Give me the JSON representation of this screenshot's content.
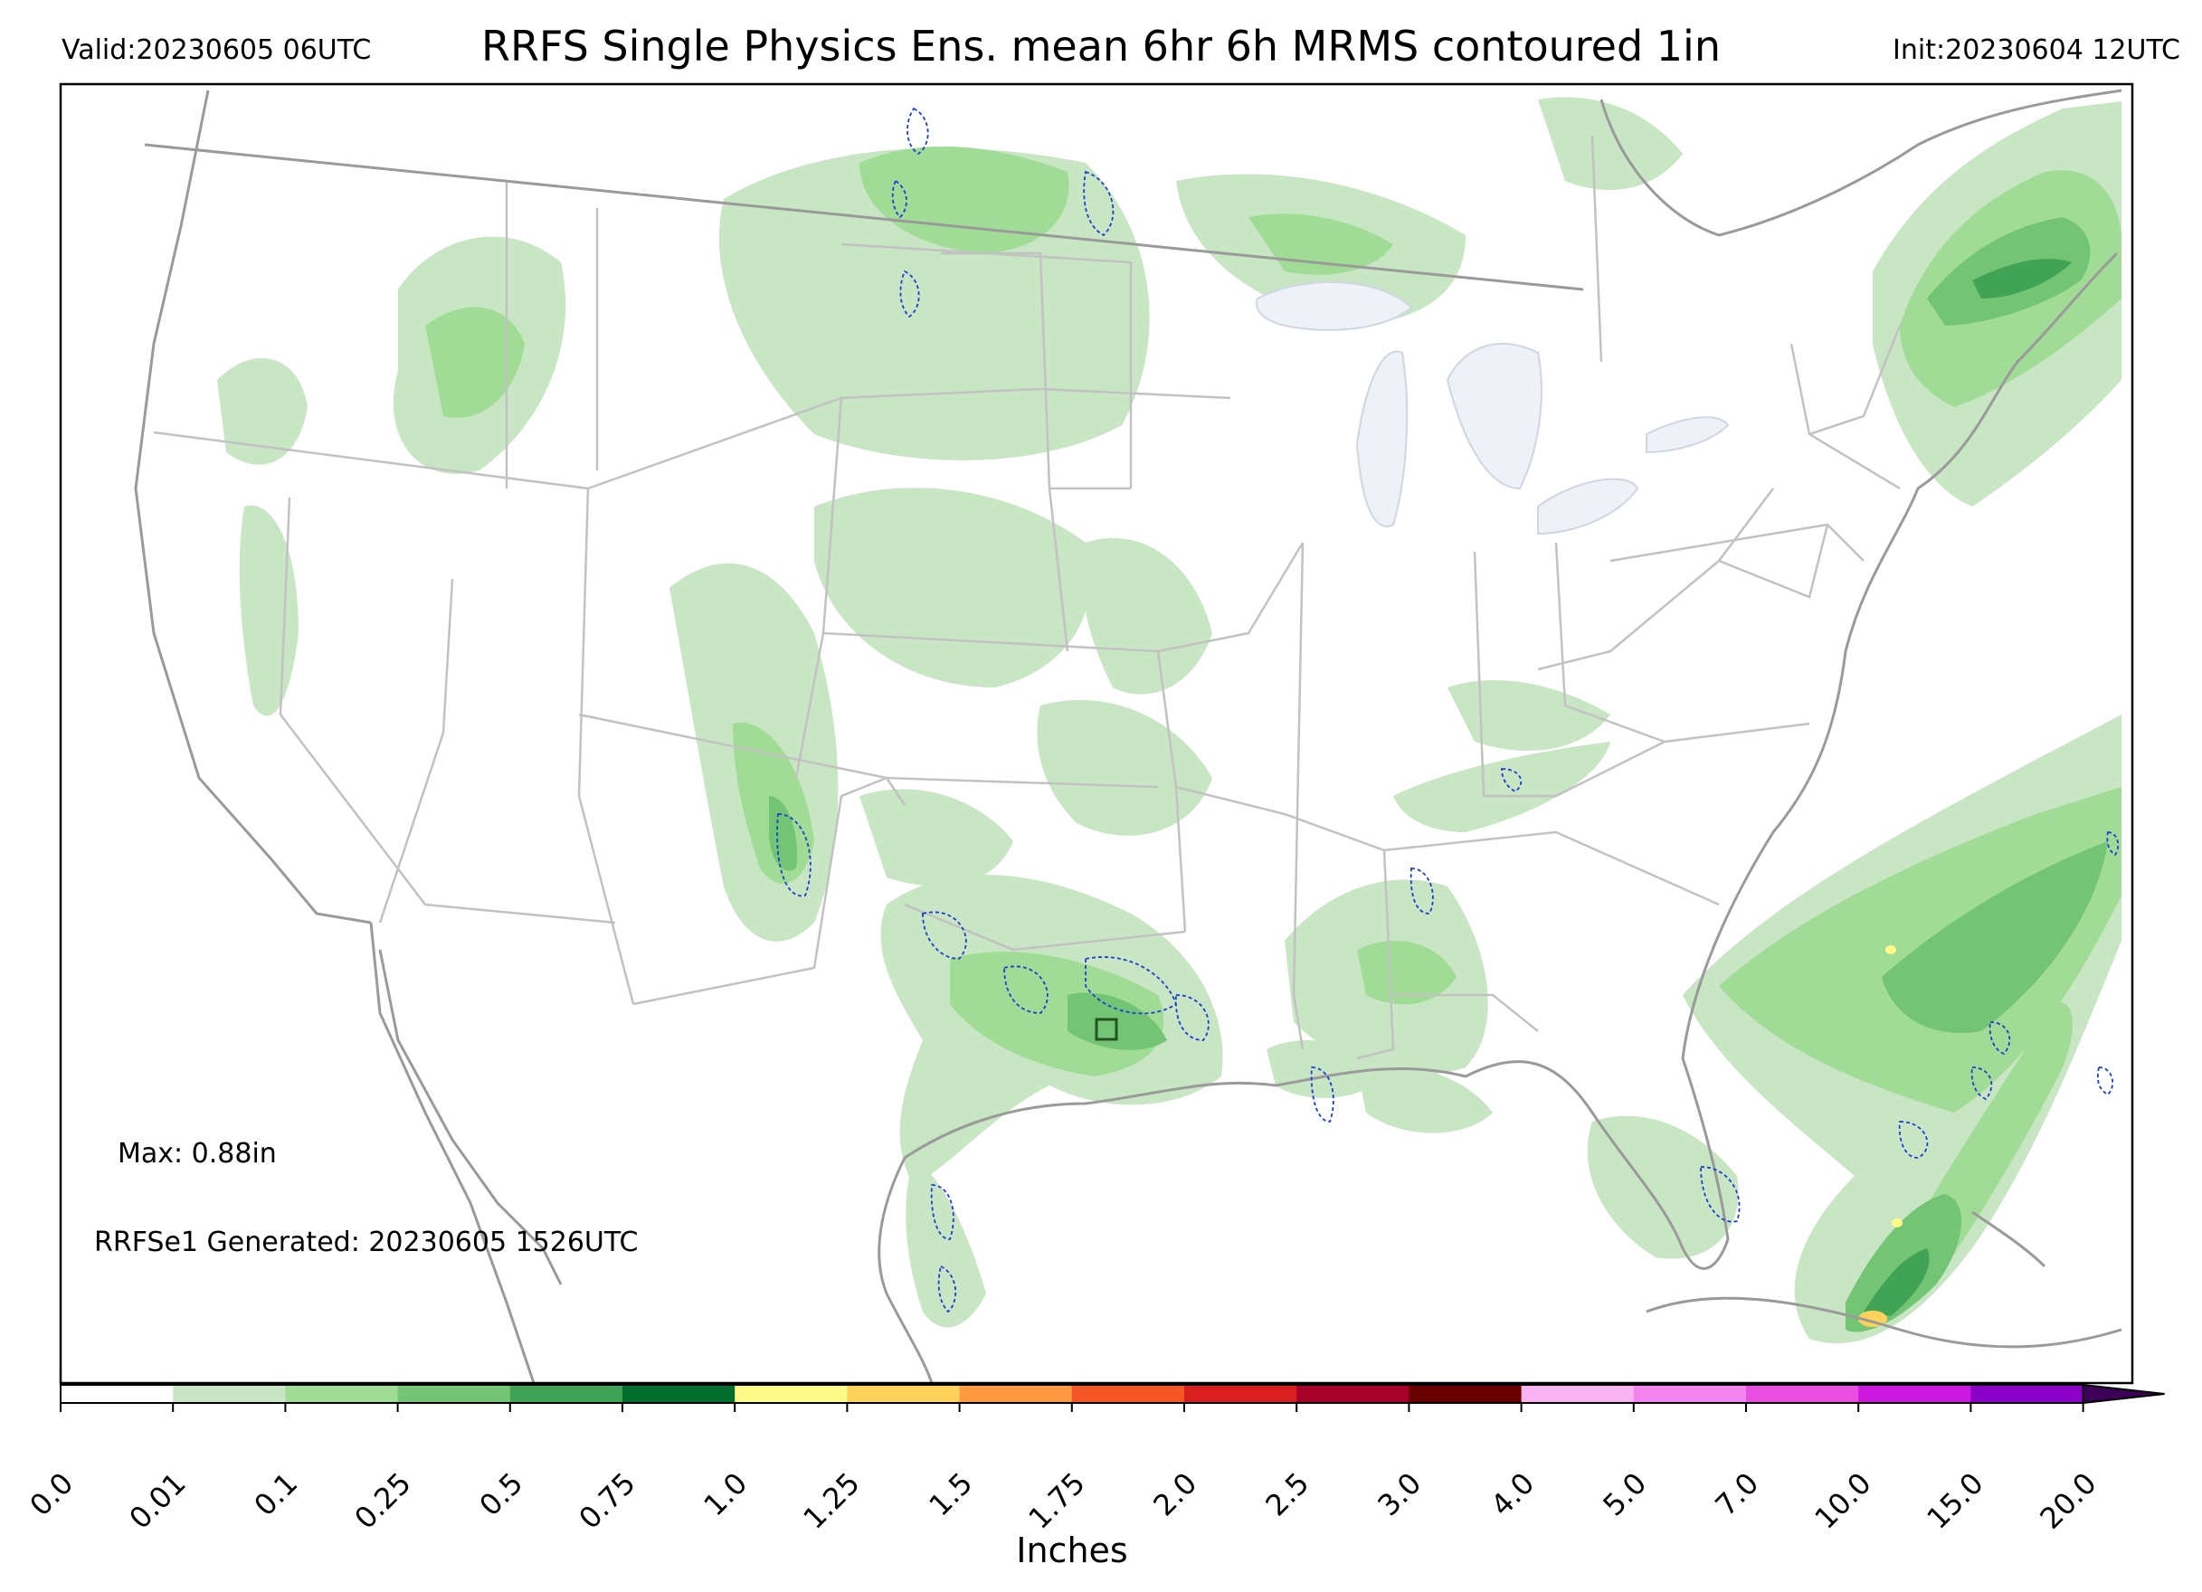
{
  "header": {
    "valid": "Valid:20230605 06UTC",
    "title": "RRFS Single Physics Ens. mean 6hr 6h MRMS contoured 1in",
    "init": "Init:20230604 12UTC"
  },
  "annotations": {
    "max": "Max: 0.88in",
    "generated": "RRFSe1 Generated: 20230605 1526UTC"
  },
  "colorbar": {
    "label": "Inches",
    "levels": [
      "0.0",
      "0.01",
      "0.1",
      "0.25",
      "0.5",
      "0.75",
      "1.0",
      "1.25",
      "1.5",
      "1.75",
      "2.0",
      "2.5",
      "3.0",
      "4.0",
      "5.0",
      "7.0",
      "10.0",
      "15.0",
      "20.0"
    ],
    "colors": [
      "#ffffff",
      "#c8e6c3",
      "#a1dc96",
      "#74c476",
      "#40a356",
      "#006d2c",
      "#fffb8a",
      "#fed15a",
      "#fd9a3f",
      "#f55626",
      "#d81e1e",
      "#a6002a",
      "#680000",
      "#f9b2f2",
      "#f383ec",
      "#e84ee0",
      "#cd18e0",
      "#8a00c8"
    ],
    "extend_color": "#3d0059"
  },
  "map_colors": {
    "coast": "#9a9a9a",
    "state": "#c2c2c2",
    "lakes": "#eef2f8",
    "contour": "#1d3dd6"
  }
}
